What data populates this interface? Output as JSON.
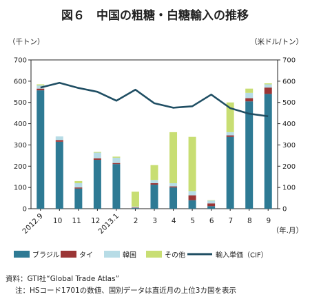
{
  "title": "図６　中国の粗糖・白糖輸入の推移",
  "left_unit": "（千トン）",
  "right_unit": "（米ドル/トン）",
  "x_unit": "（年.月）",
  "source": "資料：GTI社“Global Trade Atlas”",
  "note": "注：HSコード1701の数値、国別データは直近月の上位3カ国を表示",
  "chart_data": {
    "type": "bar",
    "stacked": true,
    "categories": [
      "2012.9",
      "10",
      "11",
      "12",
      "2013.1",
      "2",
      "3",
      "4",
      "5",
      "6",
      "7",
      "8",
      "9"
    ],
    "series": [
      {
        "name": "ブラジル",
        "color": "#2e7a94",
        "values": [
          557,
          315,
          95,
          230,
          210,
          3,
          113,
          100,
          40,
          12,
          338,
          505,
          540
        ]
      },
      {
        "name": "タイ",
        "color": "#9b3535",
        "values": [
          8,
          8,
          5,
          7,
          5,
          2,
          7,
          5,
          23,
          13,
          7,
          15,
          30
        ]
      },
      {
        "name": "韓国",
        "color": "#b7dce6",
        "values": [
          15,
          17,
          20,
          27,
          25,
          5,
          15,
          15,
          20,
          13,
          15,
          25,
          15
        ]
      },
      {
        "name": "その他",
        "color": "#c8de73",
        "values": [
          5,
          0,
          10,
          3,
          5,
          70,
          70,
          240,
          255,
          2,
          140,
          20,
          5
        ]
      }
    ],
    "line": {
      "name": "輸入単価（CIF）",
      "color": "#1f4e63",
      "values": [
        570,
        592,
        568,
        550,
        508,
        560,
        496,
        475,
        482,
        537,
        473,
        447,
        435
      ]
    },
    "ylim": [
      0,
      700
    ],
    "y2lim": [
      0,
      700
    ],
    "yticks": [
      0,
      100,
      200,
      300,
      400,
      500,
      600,
      700
    ],
    "grid": false,
    "legend_position": "bottom"
  }
}
